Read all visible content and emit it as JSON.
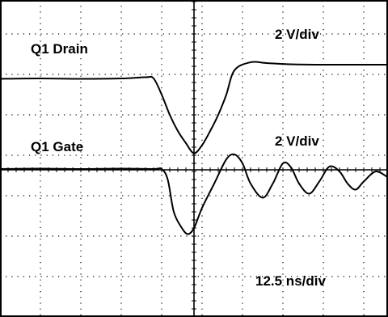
{
  "chart_data": {
    "type": "line",
    "title": "",
    "xlabel": "",
    "ylabel": "",
    "grid": true,
    "annotations": {
      "drain_label": "Q1 Drain",
      "drain_scale": "2 V/div",
      "gate_label": "Q1 Gate",
      "gate_scale": "2 V/div",
      "time_scale": "12.5 ns/div"
    },
    "xlim": [
      0,
      9.6
    ],
    "ylim": [
      0,
      7.84
    ],
    "divisions": {
      "x": 10,
      "y": 8
    },
    "series": [
      {
        "name": "Q1 Drain",
        "points": [
          [
            0.0,
            5.89
          ],
          [
            1.0,
            5.9
          ],
          [
            2.0,
            5.89
          ],
          [
            3.0,
            5.9
          ],
          [
            3.6,
            5.93
          ],
          [
            3.8,
            5.9
          ],
          [
            4.0,
            5.5
          ],
          [
            4.2,
            5.0
          ],
          [
            4.4,
            4.6
          ],
          [
            4.6,
            4.3
          ],
          [
            4.8,
            4.05
          ],
          [
            5.0,
            4.25
          ],
          [
            5.2,
            4.6
          ],
          [
            5.4,
            5.0
          ],
          [
            5.6,
            5.5
          ],
          [
            5.8,
            6.1
          ],
          [
            6.2,
            6.3
          ],
          [
            6.6,
            6.28
          ],
          [
            7.2,
            6.25
          ],
          [
            8.0,
            6.24
          ],
          [
            9.6,
            6.24
          ]
        ]
      },
      {
        "name": "Q1 Gate",
        "points": [
          [
            0.0,
            3.66
          ],
          [
            1.0,
            3.67
          ],
          [
            2.0,
            3.66
          ],
          [
            3.0,
            3.67
          ],
          [
            3.8,
            3.66
          ],
          [
            4.0,
            3.66
          ],
          [
            4.15,
            3.4
          ],
          [
            4.3,
            2.6
          ],
          [
            4.5,
            2.2
          ],
          [
            4.65,
            2.05
          ],
          [
            4.8,
            2.2
          ],
          [
            5.0,
            2.7
          ],
          [
            5.3,
            3.3
          ],
          [
            5.6,
            3.9
          ],
          [
            5.8,
            4.02
          ],
          [
            6.0,
            3.8
          ],
          [
            6.2,
            3.3
          ],
          [
            6.5,
            2.95
          ],
          [
            6.75,
            3.3
          ],
          [
            7.0,
            3.8
          ],
          [
            7.2,
            3.7
          ],
          [
            7.4,
            3.3
          ],
          [
            7.65,
            3.05
          ],
          [
            7.9,
            3.35
          ],
          [
            8.15,
            3.72
          ],
          [
            8.4,
            3.6
          ],
          [
            8.6,
            3.3
          ],
          [
            8.8,
            3.15
          ],
          [
            9.0,
            3.35
          ],
          [
            9.3,
            3.6
          ],
          [
            9.6,
            3.45
          ]
        ]
      }
    ]
  }
}
